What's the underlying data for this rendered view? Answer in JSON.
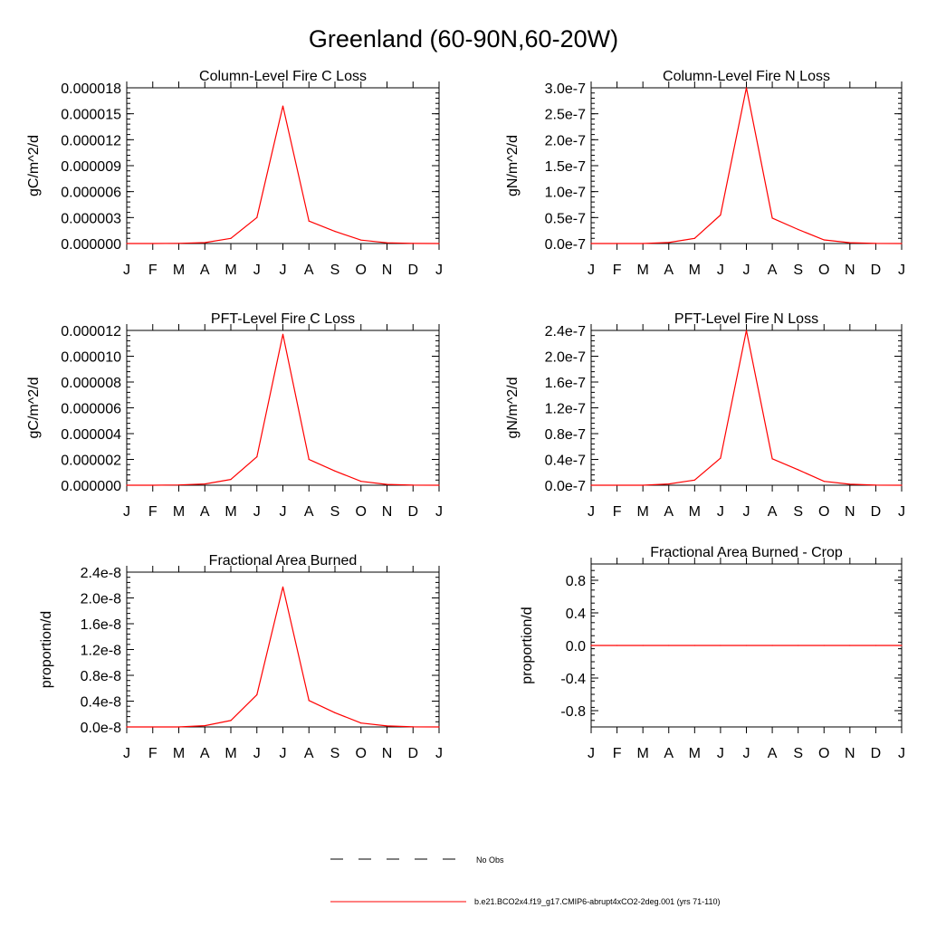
{
  "figure": {
    "title": "Greenland (60-90N,60-20W)"
  },
  "legend": {
    "obs_label": "No Obs",
    "model_label": "b.e21.BCO2x4.f19_g17.CMIP6-abrupt4xCO2-2deg.001 (yrs 71-110)",
    "model_color": "#ff0000",
    "obs_color": "#000000"
  },
  "chart_data": [
    {
      "type": "line",
      "title": "Column-Level Fire C Loss",
      "ylabel": "gC/m^2/d",
      "xlabel": "",
      "x": [
        "J",
        "F",
        "M",
        "A",
        "M",
        "J",
        "J",
        "A",
        "S",
        "O",
        "N",
        "D",
        "J"
      ],
      "ylim": [
        0,
        1.8e-05
      ],
      "yticks": [
        0,
        3e-06,
        6e-06,
        9e-06,
        1.2e-05,
        1.5e-05,
        1.8e-05
      ],
      "ytick_labels": [
        "0.000000",
        "0.000003",
        "0.000006",
        "0.000009",
        "0.000012",
        "0.000015",
        "0.000018"
      ],
      "series": [
        {
          "name": "b.e21.BCO2x4.f19_g17.CMIP6-abrupt4xCO2-2deg.001 (yrs 71-110)",
          "color": "#ff0000",
          "values": [
            0,
            0,
            2e-08,
            1e-07,
            6e-07,
            3e-06,
            1.59e-05,
            2.6e-06,
            1.4e-06,
            4e-07,
            8e-08,
            1e-08,
            0
          ]
        }
      ]
    },
    {
      "type": "line",
      "title": "Column-Level Fire N Loss",
      "ylabel": "gN/m^2/d",
      "xlabel": "",
      "x": [
        "J",
        "F",
        "M",
        "A",
        "M",
        "J",
        "J",
        "A",
        "S",
        "O",
        "N",
        "D",
        "J"
      ],
      "ylim": [
        0,
        3e-07
      ],
      "yticks": [
        0,
        5e-08,
        1e-07,
        1.5e-07,
        2e-07,
        2.5e-07,
        3e-07
      ],
      "ytick_labels": [
        "0.0e-7",
        "0.5e-7",
        "1.0e-7",
        "1.5e-7",
        "2.0e-7",
        "2.5e-7",
        "3.0e-7"
      ],
      "series": [
        {
          "name": "b.e21.BCO2x4.f19_g17.CMIP6-abrupt4xCO2-2deg.001 (yrs 71-110)",
          "color": "#ff0000",
          "values": [
            0,
            0,
            3e-11,
            2e-09,
            1e-08,
            5.5e-08,
            3e-07,
            4.9e-08,
            2.7e-08,
            7e-09,
            1.5e-09,
            2e-10,
            0
          ]
        }
      ]
    },
    {
      "type": "line",
      "title": "PFT-Level Fire C Loss",
      "ylabel": "gC/m^2/d",
      "xlabel": "",
      "x": [
        "J",
        "F",
        "M",
        "A",
        "M",
        "J",
        "J",
        "A",
        "S",
        "O",
        "N",
        "D",
        "J"
      ],
      "ylim": [
        0,
        1.2e-05
      ],
      "yticks": [
        0,
        2e-06,
        4e-06,
        6e-06,
        8e-06,
        1e-05,
        1.2e-05
      ],
      "ytick_labels": [
        "0.000000",
        "0.000002",
        "0.000004",
        "0.000006",
        "0.000008",
        "0.000010",
        "0.000012"
      ],
      "series": [
        {
          "name": "b.e21.BCO2x4.f19_g17.CMIP6-abrupt4xCO2-2deg.001 (yrs 71-110)",
          "color": "#ff0000",
          "values": [
            0,
            0,
            2e-08,
            1e-07,
            4.5e-07,
            2.2e-06,
            1.17e-05,
            2e-06,
            1.1e-06,
            3e-07,
            6e-08,
            1e-08,
            0
          ]
        }
      ]
    },
    {
      "type": "line",
      "title": "PFT-Level Fire N Loss",
      "ylabel": "gN/m^2/d",
      "xlabel": "",
      "x": [
        "J",
        "F",
        "M",
        "A",
        "M",
        "J",
        "J",
        "A",
        "S",
        "O",
        "N",
        "D",
        "J"
      ],
      "ylim": [
        0,
        2.4e-07
      ],
      "yticks": [
        0,
        4e-08,
        8e-08,
        1.2e-07,
        1.6e-07,
        2e-07,
        2.4e-07
      ],
      "ytick_labels": [
        "0.0e-7",
        "0.4e-7",
        "0.8e-7",
        "1.2e-7",
        "1.6e-7",
        "2.0e-7",
        "2.4e-7"
      ],
      "series": [
        {
          "name": "b.e21.BCO2x4.f19_g17.CMIP6-abrupt4xCO2-2deg.001 (yrs 71-110)",
          "color": "#ff0000",
          "values": [
            0,
            0,
            3e-11,
            2e-09,
            8e-09,
            4.2e-08,
            2.4e-07,
            4.1e-08,
            2.4e-08,
            6e-09,
            1.5e-09,
            2e-10,
            0
          ]
        }
      ]
    },
    {
      "type": "line",
      "title": "Fractional Area Burned",
      "ylabel": "proportion/d",
      "xlabel": "",
      "x": [
        "J",
        "F",
        "M",
        "A",
        "M",
        "J",
        "J",
        "A",
        "S",
        "O",
        "N",
        "D",
        "J"
      ],
      "ylim": [
        0,
        2.4e-08
      ],
      "yticks": [
        0,
        4e-09,
        8e-09,
        1.2e-08,
        1.6e-08,
        2e-08,
        2.4e-08
      ],
      "ytick_labels": [
        "0.0e-8",
        "0.4e-8",
        "0.8e-8",
        "1.2e-8",
        "1.6e-8",
        "2.0e-8",
        "2.4e-8"
      ],
      "series": [
        {
          "name": "b.e21.BCO2x4.f19_g17.CMIP6-abrupt4xCO2-2deg.001 (yrs 71-110)",
          "color": "#ff0000",
          "values": [
            0,
            0,
            3e-12,
            2e-10,
            1e-09,
            5e-09,
            2.17e-08,
            4.1e-09,
            2.2e-09,
            6e-10,
            1.5e-10,
            2e-11,
            0
          ]
        }
      ]
    },
    {
      "type": "line",
      "title": "Fractional Area Burned - Crop",
      "ylabel": "proportion/d",
      "xlabel": "",
      "x": [
        "J",
        "F",
        "M",
        "A",
        "M",
        "J",
        "J",
        "A",
        "S",
        "O",
        "N",
        "D",
        "J"
      ],
      "ylim": [
        -1.0,
        1.0
      ],
      "yticks": [
        -0.8,
        -0.4,
        0.0,
        0.4,
        0.8
      ],
      "ytick_labels": [
        "-0.8",
        "-0.4",
        "0.0",
        "0.4",
        "0.8"
      ],
      "series": [
        {
          "name": "b.e21.BCO2x4.f19_g17.CMIP6-abrupt4xCO2-2deg.001 (yrs 71-110)",
          "color": "#ff0000",
          "values": [
            0,
            0,
            0,
            0,
            0,
            0,
            0,
            0,
            0,
            0,
            0,
            0,
            0
          ]
        }
      ]
    }
  ]
}
